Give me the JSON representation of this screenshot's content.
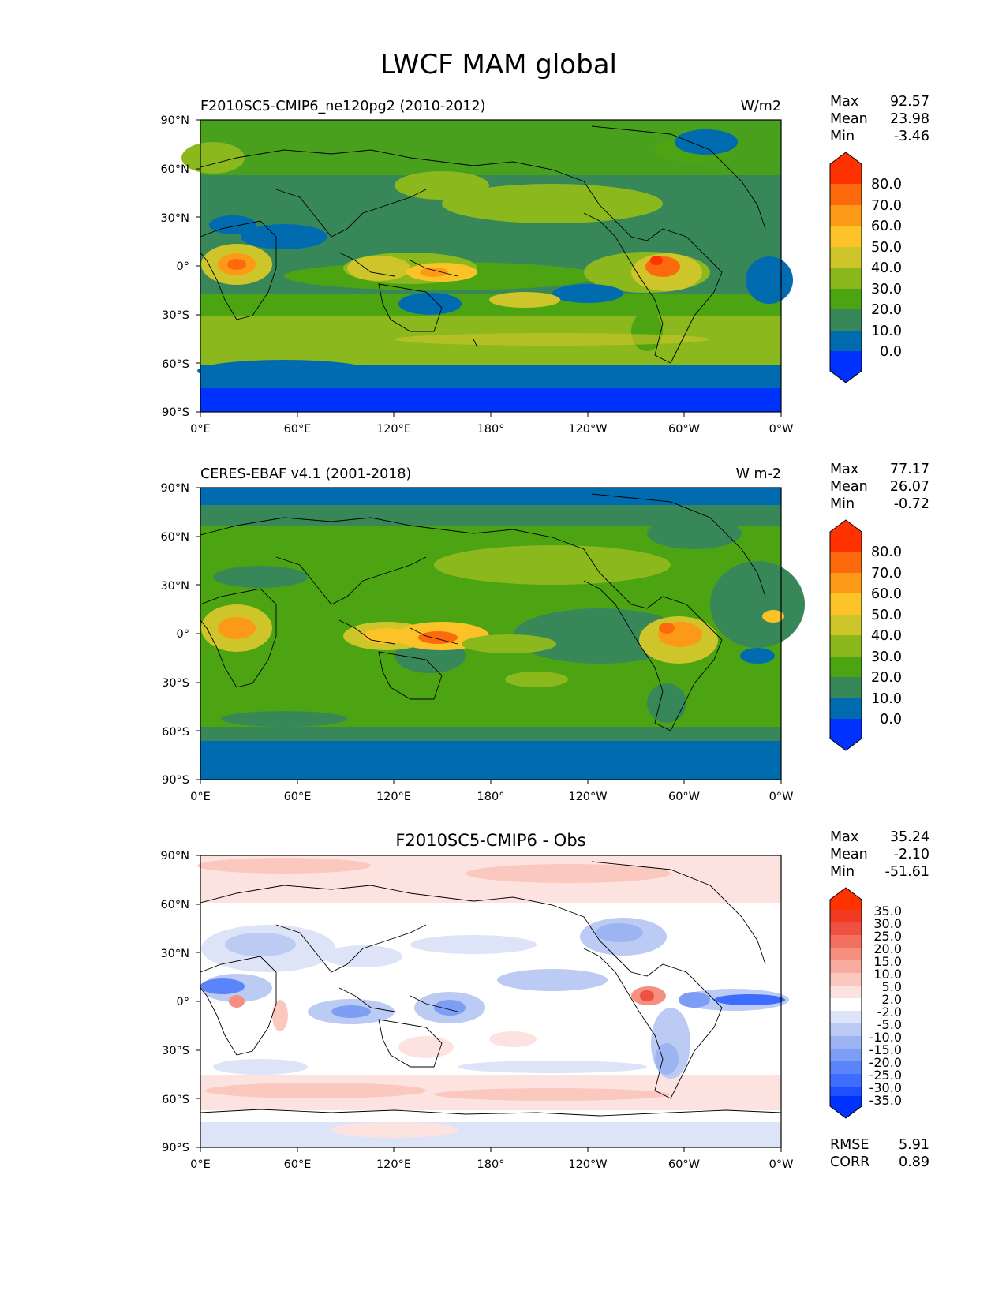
{
  "figure": {
    "title": "LWCF MAM global"
  },
  "axes": {
    "lat_ticks": [
      "90°N",
      "60°N",
      "30°N",
      "0°",
      "30°S",
      "60°S",
      "90°S"
    ],
    "lon_ticks": [
      "0°E",
      "60°E",
      "120°E",
      "180°",
      "120°W",
      "60°W",
      "0°W"
    ]
  },
  "panels": [
    {
      "id": "model",
      "title_left": "F2010SC5-CMIP6_ne120pg2 (2010-2012)",
      "title_center": "",
      "units": "W/m2",
      "stats": [
        {
          "label": "Max",
          "value": "92.57"
        },
        {
          "label": "Mean",
          "value": "23.98"
        },
        {
          "label": "Min",
          "value": "-3.46"
        }
      ],
      "colorbar_labels": [
        "80.0",
        "70.0",
        "60.0",
        "50.0",
        "40.0",
        "30.0",
        "20.0",
        "10.0",
        "0.0"
      ]
    },
    {
      "id": "obs",
      "title_left": "CERES-EBAF v4.1 (2001-2018)",
      "title_center": "",
      "units": "W m-2",
      "stats": [
        {
          "label": "Max",
          "value": "77.17"
        },
        {
          "label": "Mean",
          "value": "26.07"
        },
        {
          "label": "Min",
          "value": "-0.72"
        }
      ],
      "colorbar_labels": [
        "80.0",
        "70.0",
        "60.0",
        "50.0",
        "40.0",
        "30.0",
        "20.0",
        "10.0",
        "0.0"
      ]
    },
    {
      "id": "diff",
      "title_left": "",
      "title_center": "F2010SC5-CMIP6 - Obs",
      "units": "",
      "stats": [
        {
          "label": "Max",
          "value": "35.24"
        },
        {
          "label": "Mean",
          "value": "-2.10"
        },
        {
          "label": "Min",
          "value": "-51.61"
        }
      ],
      "colorbar_labels": [
        "35.0",
        "30.0",
        "25.0",
        "20.0",
        "15.0",
        "10.0",
        "5.0",
        "2.0",
        "-2.0",
        "-5.0",
        "-10.0",
        "-15.0",
        "-20.0",
        "-25.0",
        "-30.0",
        "-35.0"
      ],
      "footer_stats": [
        {
          "label": "RMSE",
          "value": "5.91"
        },
        {
          "label": "CORR",
          "value": "0.89"
        }
      ]
    }
  ],
  "colors": {
    "abs_scale": [
      "#0032ff",
      "#006baf",
      "#388759",
      "#4ca413",
      "#8ab81d",
      "#cdc52a",
      "#fbc328",
      "#fc9a17",
      "#fc6a0d",
      "#ff3200"
    ],
    "diff_scale": [
      "#0032ff",
      "#1e50ff",
      "#3d6cff",
      "#5a85fa",
      "#7d9ef5",
      "#9cb4f2",
      "#bccbf4",
      "#dde4f8",
      "#ffffff",
      "#fde3e0",
      "#fbc8c0",
      "#f8aca0",
      "#f58f80",
      "#f27060",
      "#ef5040",
      "#f23a22",
      "#ff3200"
    ]
  }
}
